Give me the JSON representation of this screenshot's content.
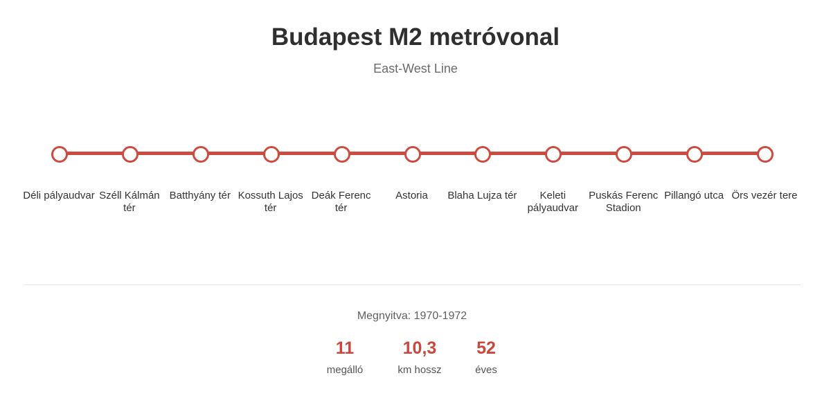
{
  "header": {
    "title": "Budapest M2 metróvonal",
    "subtitle": "East-West Line"
  },
  "line": {
    "color": "#cc4b3f",
    "stations": [
      "Déli pályaudvar",
      "Széll Kálmán tér",
      "Batthyány tér",
      "Kossuth Lajos tér",
      "Deák Ferenc tér",
      "Astoria",
      "Blaha Lujza tér",
      "Keleti pályaudvar",
      "Puskás Ferenc Stadion",
      "Pillangó utca",
      "Örs vezér tere"
    ]
  },
  "footer": {
    "opened": "Megnyitva: 1970-1972",
    "stats": [
      {
        "value": "11",
        "label": "megálló"
      },
      {
        "value": "10,3",
        "label": "km hossz"
      },
      {
        "value": "52",
        "label": "éves"
      }
    ]
  }
}
